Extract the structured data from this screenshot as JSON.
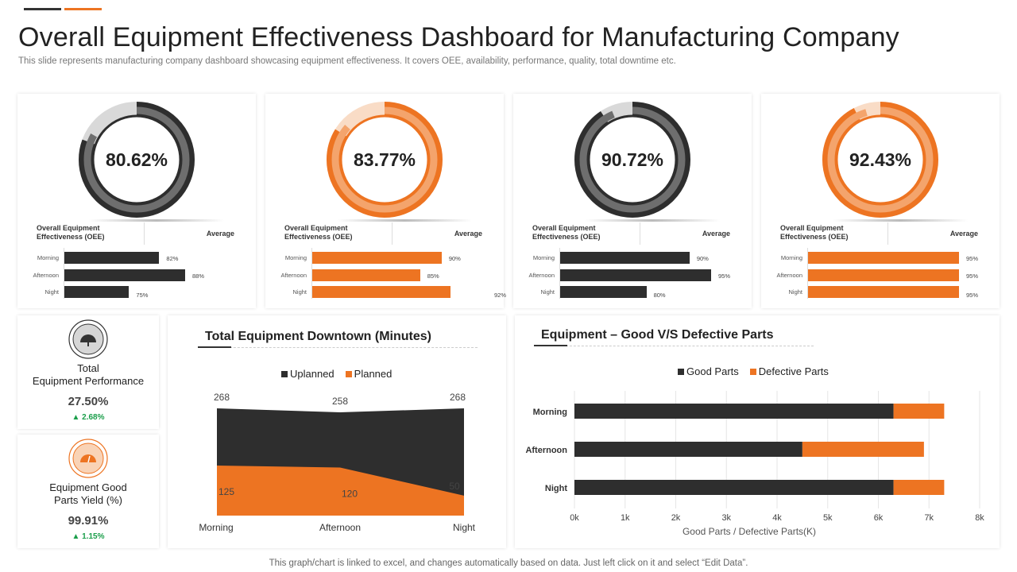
{
  "colors": {
    "dark": "#2e2e2e",
    "orange": "#ed7422",
    "gray": "#6e6e6e",
    "light_gray": "#d9d9d9",
    "light_orange": "#f9dcc6",
    "mid_orange": "#f4a46c",
    "green": "#1a9e4a"
  },
  "header": {
    "title": "Overall Equipment Effectiveness Dashboard for Manufacturing Company",
    "subtitle": "This slide represents manufacturing company dashboard showcasing equipment effectiveness. It covers OEE, availability, performance, quality, total downtime etc."
  },
  "oee_panels": [
    {
      "value_label": "80.62%",
      "value": 80.62,
      "theme": "dark",
      "label": "Overall Equipment Effectiveness (OEE)",
      "avg_label": "Average",
      "rows": [
        {
          "name": "Morning",
          "value": 82,
          "label": "82%"
        },
        {
          "name": "Afternoon",
          "value": 88,
          "label": "88%"
        },
        {
          "name": "Night",
          "value": 75,
          "label": "75%"
        }
      ]
    },
    {
      "value_label": "83.77%",
      "value": 83.77,
      "theme": "orange",
      "label": "Overall Equipment Effectiveness (OEE)",
      "avg_label": "Average",
      "rows": [
        {
          "name": "Morning",
          "value": 90,
          "label": "90%"
        },
        {
          "name": "Afternoon",
          "value": 85,
          "label": "85%"
        },
        {
          "name": "Night",
          "value": 92,
          "label": "92%"
        }
      ]
    },
    {
      "value_label": "90.72%",
      "value": 90.72,
      "theme": "dark",
      "label": "Overall Equipment Effectiveness (OEE)",
      "avg_label": "Average",
      "rows": [
        {
          "name": "Morning",
          "value": 90,
          "label": "90%"
        },
        {
          "name": "Afternoon",
          "value": 95,
          "label": "95%"
        },
        {
          "name": "Night",
          "value": 80,
          "label": "80%"
        }
      ]
    },
    {
      "value_label": "92.43%",
      "value": 92.43,
      "theme": "orange",
      "label": "Overall Equipment Effectiveness (OEE)",
      "avg_label": "Average",
      "rows": [
        {
          "name": "Morning",
          "value": 95,
          "label": "95%"
        },
        {
          "name": "Afternoon",
          "value": 95,
          "label": "95%"
        },
        {
          "name": "Night",
          "value": 95,
          "label": "95%"
        }
      ]
    }
  ],
  "kpis": [
    {
      "title_line1": "Total",
      "title_line2": "Equipment Performance",
      "value": "27.50%",
      "delta": "▲ 2.68%",
      "icon": "speedometer-icon"
    },
    {
      "title_line1": "Equipment Good",
      "title_line2": "Parts Yield (%)",
      "value": "99.91%",
      "delta": "▲ 1.15%",
      "icon": "gauge-icon"
    }
  ],
  "chart_data": [
    {
      "type": "area",
      "title": "Total Equipment Downtown (Minutes)",
      "categories": [
        "Morning",
        "Afternoon",
        "Night"
      ],
      "series": [
        {
          "name": "Uplanned",
          "values": [
            268,
            258,
            268
          ],
          "color": "#2e2e2e"
        },
        {
          "name": "Planned",
          "values": [
            125,
            120,
            50
          ],
          "color": "#ed7422"
        }
      ],
      "legend": "top",
      "ylim": [
        0,
        268
      ]
    },
    {
      "type": "bar",
      "orientation": "horizontal",
      "stacked": true,
      "title": "Equipment – Good V/S Defective Parts",
      "categories": [
        "Morning",
        "Afternoon",
        "Night"
      ],
      "series": [
        {
          "name": "Good Parts",
          "values": [
            6.3,
            4.5,
            6.3
          ],
          "color": "#2e2e2e"
        },
        {
          "name": "Defective Parts",
          "values": [
            1.0,
            2.4,
            1.0
          ],
          "color": "#ed7422"
        }
      ],
      "xlabel": "Good Parts / Defective Parts(K)",
      "xlim": [
        0,
        8
      ],
      "xticks": [
        "0k",
        "1k",
        "2k",
        "3k",
        "4k",
        "5k",
        "6k",
        "7k",
        "8k"
      ],
      "legend": "top",
      "grid": true
    }
  ],
  "footer": "This graph/chart is linked to excel, and changes automatically based on data. Just left click on it and select “Edit Data”."
}
